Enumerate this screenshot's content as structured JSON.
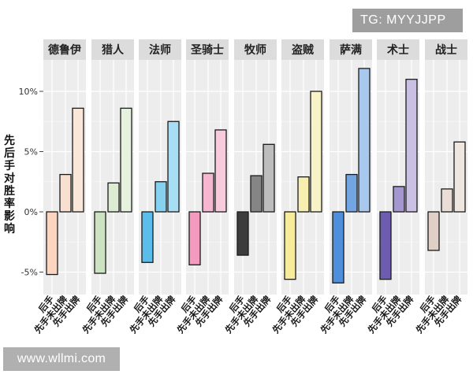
{
  "watermarks": {
    "top_right": "TG: MYYJJPP",
    "bottom_left": "www.wllmi.com"
  },
  "chart_data": {
    "type": "bar",
    "ylabel": "先后手对胜率影响",
    "yticks": [
      "10%",
      "5%",
      "0%",
      "-5%"
    ],
    "ytick_values": [
      10,
      5,
      0,
      -5
    ],
    "ylim": [
      -6.5,
      12.5
    ],
    "categories": [
      "后手",
      "先手未出牌",
      "先手出牌"
    ],
    "facets": [
      {
        "name": "德鲁伊",
        "values": [
          -5.2,
          3.1,
          8.6
        ],
        "colors": [
          "#fbd5c0",
          "#f7e0cf",
          "#fbe7da"
        ]
      },
      {
        "name": "猎人",
        "values": [
          -5.1,
          2.4,
          8.6
        ],
        "colors": [
          "#cce3c1",
          "#dcecd2",
          "#e6f2de"
        ]
      },
      {
        "name": "法师",
        "values": [
          -4.2,
          2.5,
          7.5
        ],
        "colors": [
          "#5bbdea",
          "#86d1ef",
          "#a7def3"
        ]
      },
      {
        "name": "圣骑士",
        "values": [
          -4.4,
          3.2,
          6.8
        ],
        "colors": [
          "#f29bbf",
          "#f6b6cf",
          "#f8cbdc"
        ]
      },
      {
        "name": "牧师",
        "values": [
          -3.6,
          3.0,
          5.6
        ],
        "colors": [
          "#3c3c3c",
          "#858585",
          "#bdbdbd"
        ]
      },
      {
        "name": "盗贼",
        "values": [
          -5.6,
          2.9,
          10.0
        ],
        "colors": [
          "#f7ec99",
          "#f7efb0",
          "#f8f3c6"
        ]
      },
      {
        "name": "萨满",
        "values": [
          -5.9,
          3.1,
          11.9
        ],
        "colors": [
          "#4f8edb",
          "#73a5e2",
          "#a9c8ed"
        ]
      },
      {
        "name": "术士",
        "values": [
          -5.6,
          2.1,
          11.0
        ],
        "colors": [
          "#6e5cb0",
          "#a496cf",
          "#c9c0e3"
        ]
      },
      {
        "name": "战士",
        "values": [
          -3.2,
          1.9,
          5.8
        ],
        "colors": [
          "#e0cfc6",
          "#e9ddd5",
          "#efe6e0"
        ]
      }
    ]
  }
}
